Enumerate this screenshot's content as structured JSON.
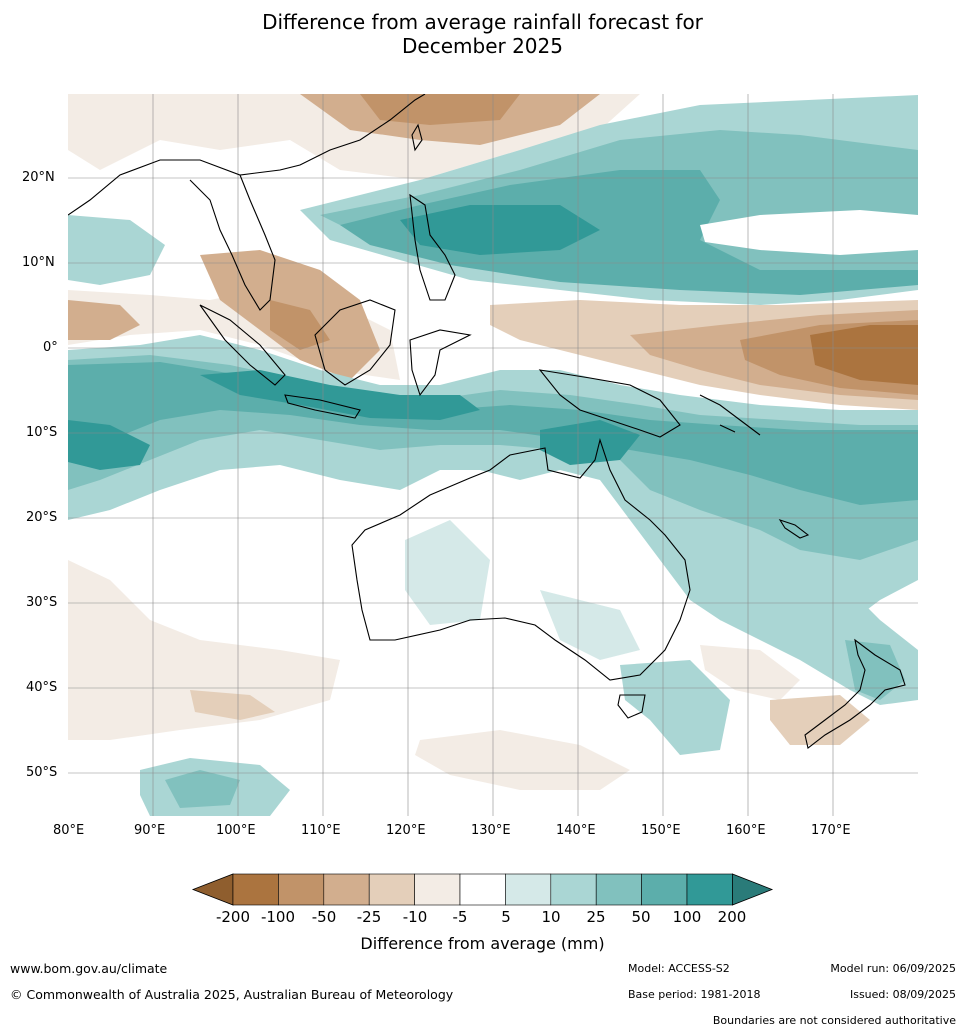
{
  "title_line1": "Difference from average rainfall forecast for",
  "title_line2": "December 2025",
  "map": {
    "region": "Australia, Indonesia, Southeast Asia and south-west Pacific",
    "latitude_ticks": [
      "20°N",
      "10°N",
      "0°",
      "10°S",
      "20°S",
      "30°S",
      "40°S",
      "50°S"
    ],
    "longitude_ticks": [
      "80°E",
      "90°E",
      "100°E",
      "110°E",
      "120°E",
      "130°E",
      "140°E",
      "150°E",
      "160°E",
      "170°E"
    ],
    "category_colors": {
      "lt_-200": "#8f5e2e",
      "-200_-100": "#ab743f",
      "-100_-50": "#c19369",
      "-50_-25": "#d2ae8e",
      "-25_-10": "#e4cfba",
      "-10_-5": "#f3ece5",
      "-5_5": "#ffffff",
      "5_10": "#d5e9e8",
      "10_25": "#aad6d4",
      "25_50": "#81c1be",
      "50_100": "#5caeab",
      "100_200": "#319997",
      "gt_200": "#2a7b79"
    },
    "coastline_color": "#000000",
    "gridline_color": "#8a8a8a"
  },
  "colorbar": {
    "ticks": [
      "-200",
      "-100",
      "-50",
      "-25",
      "-10",
      "-5",
      "5",
      "10",
      "25",
      "50",
      "100",
      "200"
    ],
    "colors": [
      "#8f5e2e",
      "#ab743f",
      "#c19369",
      "#d2ae8e",
      "#e4cfba",
      "#f3ece5",
      "#ffffff",
      "#d5e9e8",
      "#aad6d4",
      "#81c1be",
      "#5caeab",
      "#319997",
      "#2a7b79"
    ],
    "title": "Difference from average (mm)"
  },
  "footer": {
    "website": "www.bom.gov.au/climate",
    "copyright": "© Commonwealth of Australia 2025, Australian Bureau of Meteorology",
    "model": "Model: ACCESS-S2",
    "base_period": "Base period: 1981-2018",
    "model_run": "Model run: 06/09/2025",
    "issued": "Issued: 08/09/2025",
    "disclaimer": "Boundaries are not considered authoritative"
  }
}
